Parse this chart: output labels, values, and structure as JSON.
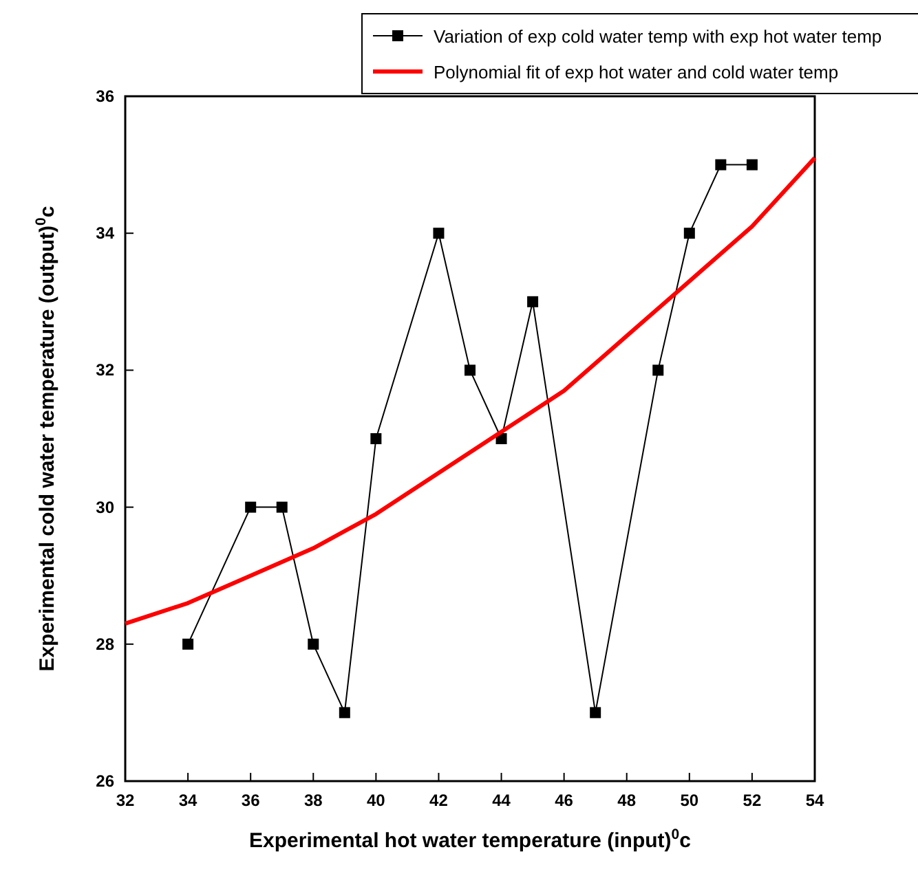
{
  "chart_data": {
    "type": "line",
    "xlabel": "Experimental hot water temperature (input)$^{0}$c",
    "ylabel": "Experimental cold water temperature (output)$^{0}$c",
    "xlim": [
      32,
      54
    ],
    "xticks": [
      32,
      34,
      36,
      38,
      40,
      42,
      44,
      46,
      48,
      50,
      52,
      54
    ],
    "ylim": [
      26,
      36
    ],
    "yticks": [
      26,
      28,
      30,
      32,
      34,
      36
    ],
    "legend": "top right",
    "grid": false,
    "series": [
      {
        "name": "Variation of exp cold water temp with exp hot water temp",
        "color": "#000000",
        "marker": "square",
        "line_style": "solid",
        "x": [
          34,
          36,
          37,
          38,
          39,
          40,
          42,
          43,
          44,
          45,
          47,
          49,
          50,
          51,
          52
        ],
        "values": [
          28,
          30,
          30,
          28,
          27,
          31,
          34,
          32,
          31,
          33,
          27,
          32,
          34,
          35,
          35
        ]
      },
      {
        "name": "Polynomial fit of exp hot water and cold water temp",
        "color": "#ff0000",
        "marker": "none",
        "line_style": "solid",
        "x": [
          32,
          34,
          36,
          38,
          40,
          42,
          44,
          46,
          48,
          50,
          52,
          54
        ],
        "values": [
          28.3,
          28.6,
          29.0,
          29.4,
          29.9,
          30.5,
          31.1,
          31.7,
          32.5,
          33.3,
          34.1,
          35.1
        ]
      }
    ]
  }
}
